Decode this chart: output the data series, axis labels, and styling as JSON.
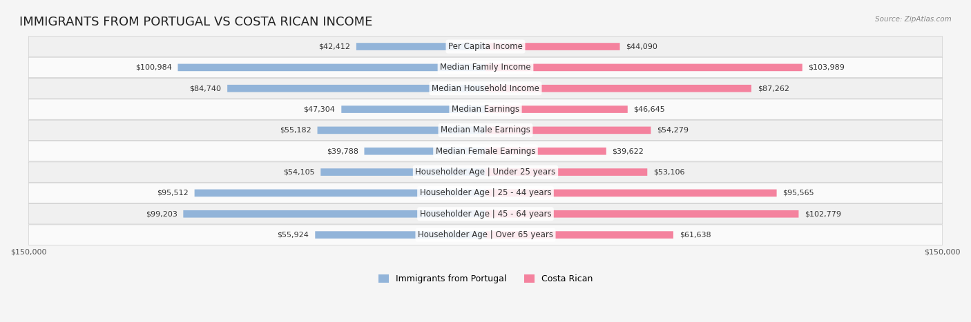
{
  "title": "IMMIGRANTS FROM PORTUGAL VS COSTA RICAN INCOME",
  "source": "Source: ZipAtlas.com",
  "categories": [
    "Per Capita Income",
    "Median Family Income",
    "Median Household Income",
    "Median Earnings",
    "Median Male Earnings",
    "Median Female Earnings",
    "Householder Age | Under 25 years",
    "Householder Age | 25 - 44 years",
    "Householder Age | 45 - 64 years",
    "Householder Age | Over 65 years"
  ],
  "portugal_values": [
    42412,
    100984,
    84740,
    47304,
    55182,
    39788,
    54105,
    95512,
    99203,
    55924
  ],
  "costarican_values": [
    44090,
    103989,
    87262,
    46645,
    54279,
    39622,
    53106,
    95565,
    102779,
    61638
  ],
  "portugal_labels": [
    "$42,412",
    "$100,984",
    "$84,740",
    "$47,304",
    "$55,182",
    "$39,788",
    "$54,105",
    "$95,512",
    "$99,203",
    "$55,924"
  ],
  "costarican_labels": [
    "$44,090",
    "$103,989",
    "$87,262",
    "$46,645",
    "$54,279",
    "$39,622",
    "$53,106",
    "$95,565",
    "$102,779",
    "$61,638"
  ],
  "portugal_color": "#92B4D9",
  "costarican_color": "#F4829E",
  "portugal_color_dark": "#5B8FCC",
  "costarican_color_dark": "#F05080",
  "max_value": 150000,
  "background_color": "#f5f5f5",
  "bar_bg_color": "#e8e8e8",
  "row_bg_even": "#f0f0f0",
  "row_bg_odd": "#fafafa",
  "title_fontsize": 13,
  "label_fontsize": 8.5,
  "value_fontsize": 8,
  "legend_fontsize": 9,
  "axis_label_fontsize": 8
}
